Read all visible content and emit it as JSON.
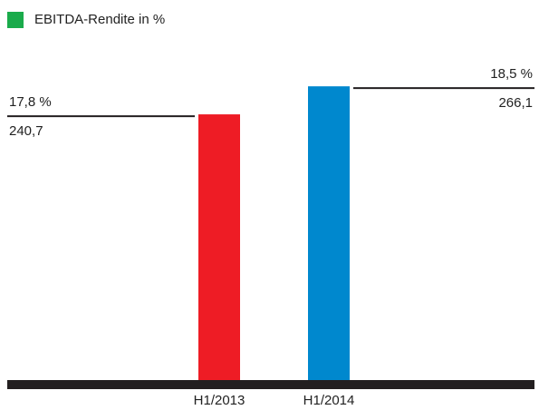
{
  "chart_data": {
    "type": "bar",
    "categories": [
      "H1/2013",
      "H1/2014"
    ],
    "values": [
      240.7,
      266.1
    ],
    "value_labels": [
      "240,7",
      "266,1"
    ],
    "colors": [
      "#ee1c25",
      "#0088ce"
    ],
    "legend": {
      "label": "EBITDA-Rendite in %",
      "color": "#1aab4b"
    },
    "margins": {
      "values": [
        17.8,
        18.5
      ],
      "value_labels": [
        "17,8 %",
        "18,5 %"
      ],
      "color": "#1aab4b"
    }
  }
}
